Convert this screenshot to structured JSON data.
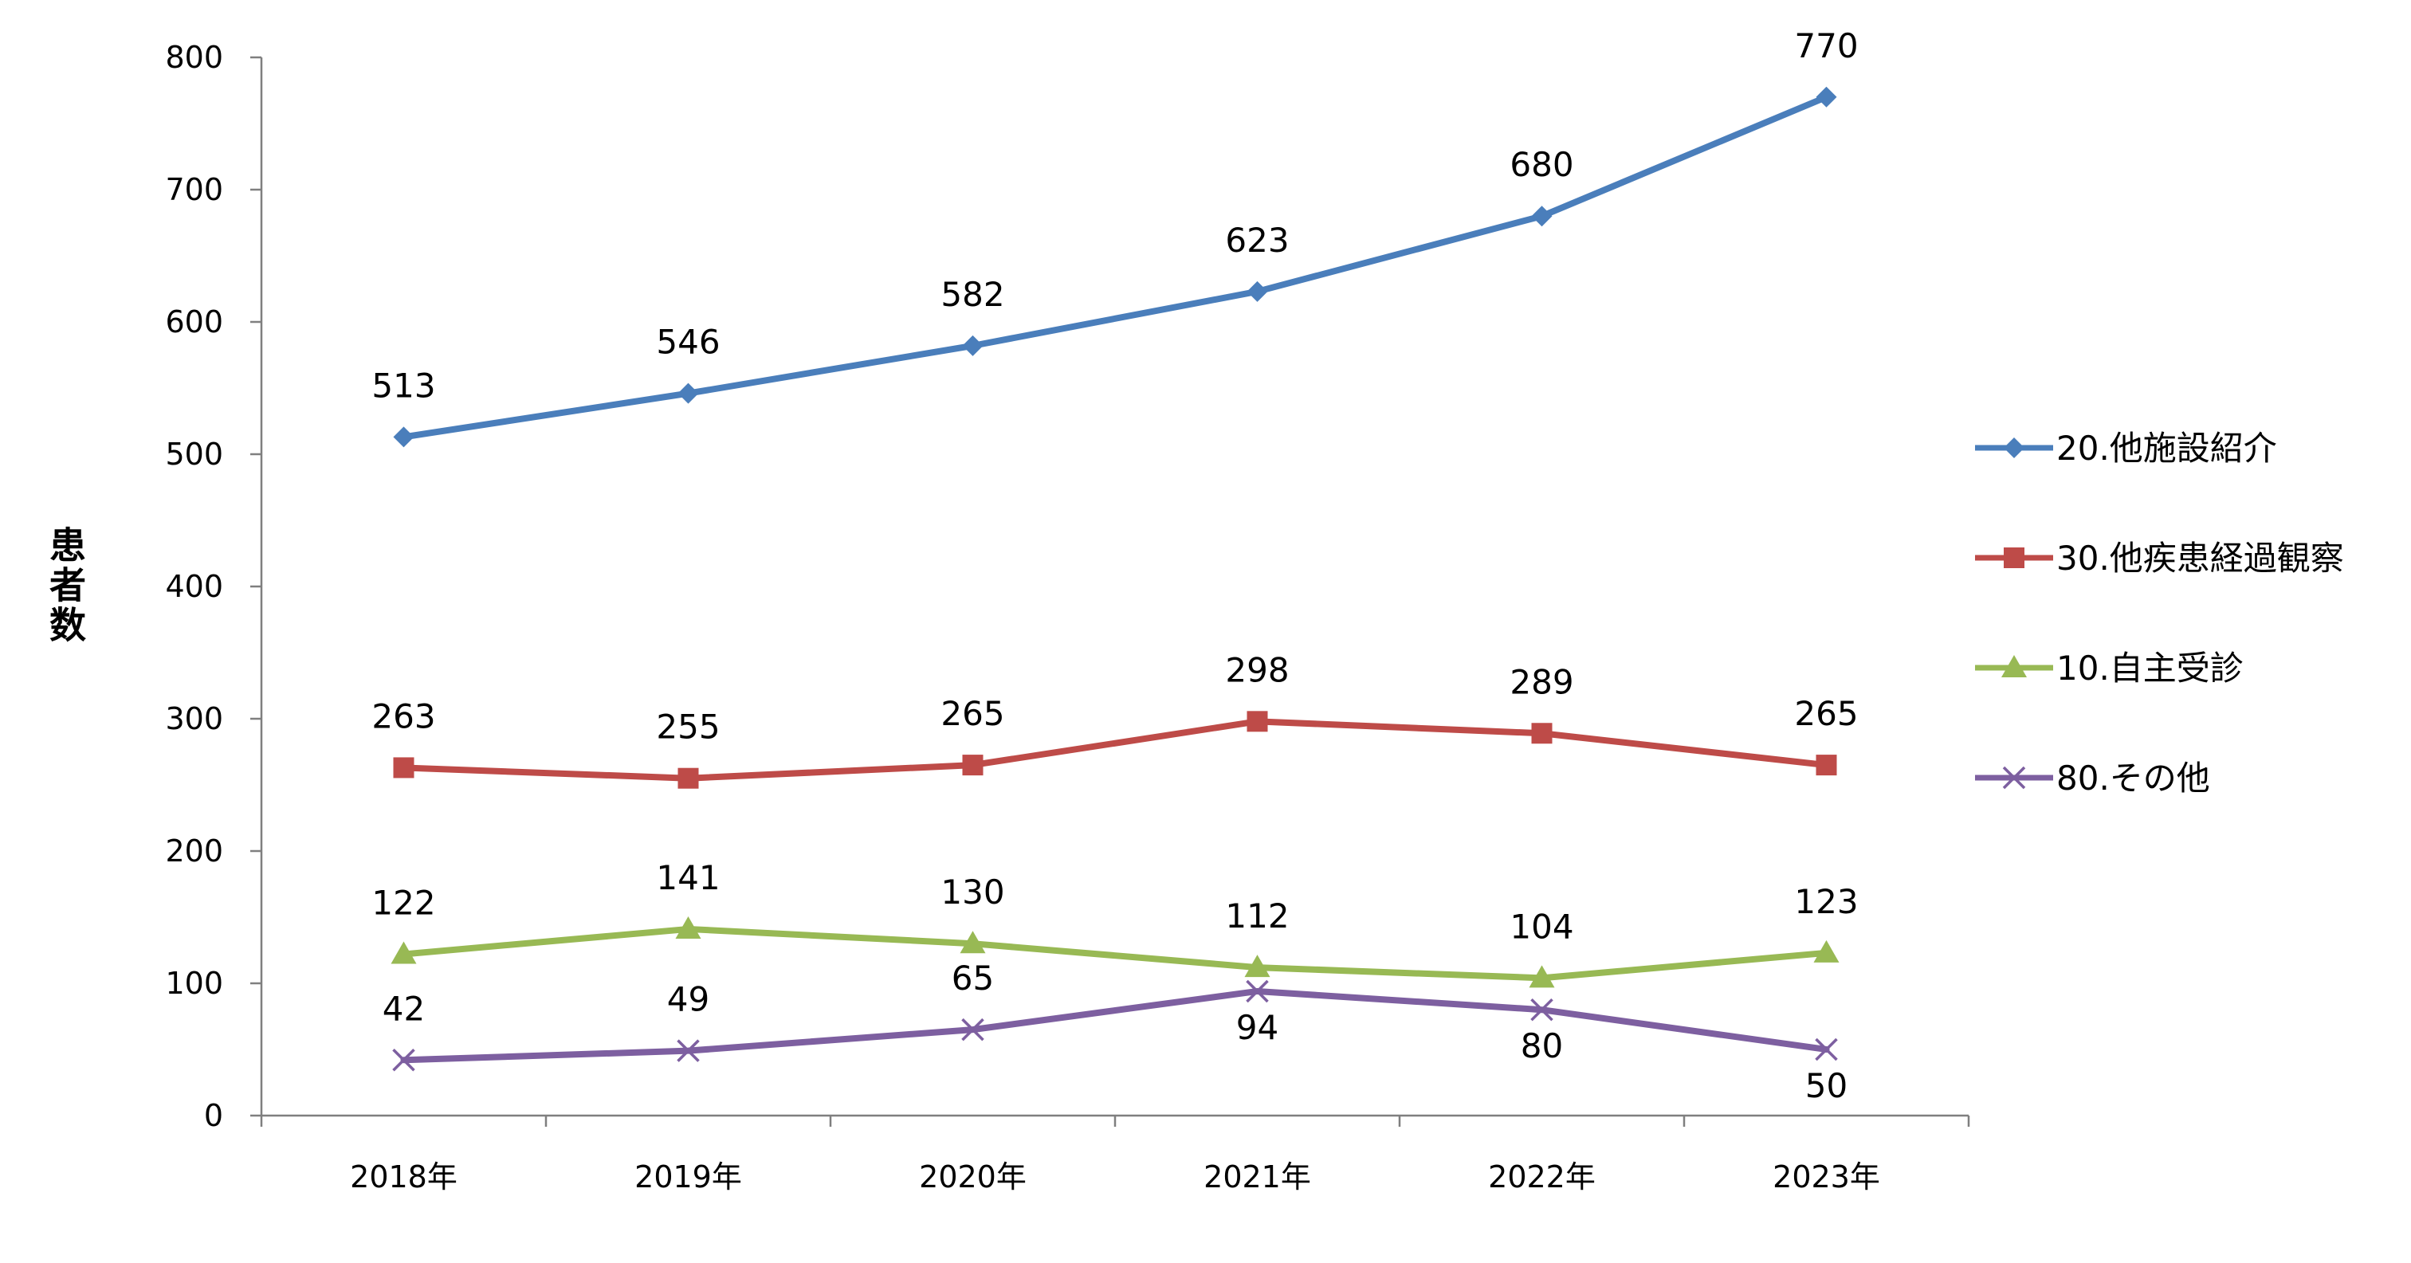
{
  "chart_data": {
    "type": "line",
    "title": "",
    "xlabel": "",
    "ylabel": "患者数",
    "ylim": [
      0,
      800
    ],
    "yticks": [
      0,
      100,
      200,
      300,
      400,
      500,
      600,
      700,
      800
    ],
    "grid": false,
    "legend_position": "right",
    "categories": [
      "2018年",
      "2019年",
      "2020年",
      "2021年",
      "2022年",
      "2023年"
    ],
    "series": [
      {
        "name": "20.他施設紹介",
        "values": [
          513,
          546,
          582,
          623,
          680,
          770
        ],
        "color": "#4a7ebb",
        "marker": "diamond"
      },
      {
        "name": "30.他疾患経過観察",
        "values": [
          263,
          255,
          265,
          298,
          289,
          265
        ],
        "color": "#be4b48",
        "marker": "square"
      },
      {
        "name": "10.自主受診",
        "values": [
          122,
          141,
          130,
          112,
          104,
          123
        ],
        "color": "#98b954",
        "marker": "triangle"
      },
      {
        "name": "80.その他",
        "values": [
          42,
          49,
          65,
          94,
          80,
          50
        ],
        "color": "#7d5fa0",
        "marker": "x"
      }
    ]
  }
}
